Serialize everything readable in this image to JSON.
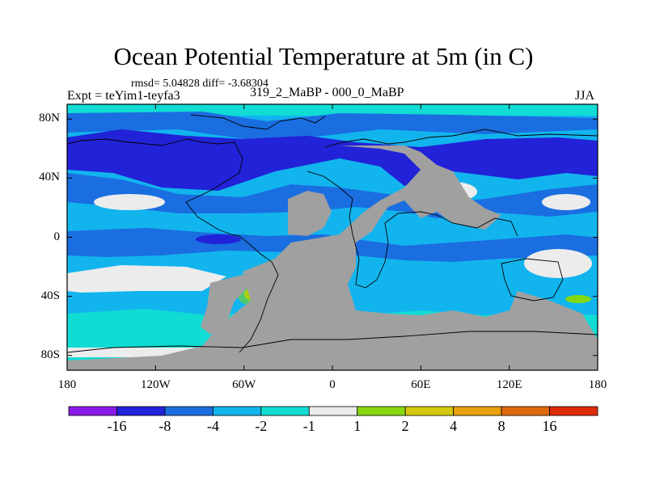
{
  "title": "Ocean Potential Temperature at 5m (in C)",
  "stats": "rmsd= 5.04828 diff= -3.68304",
  "expt": "Expt = teYim1-teyfa3",
  "difference_label": "319_2_MaBP - 000_0_MaBP",
  "season": "JJA",
  "chart_data": {
    "type": "heatmap",
    "variable": "Ocean Potential Temperature at 5m (in C)",
    "projection": "cylindrical equidistant, global",
    "xlim": [
      -180,
      180
    ],
    "ylim": [
      -90,
      90
    ],
    "x_ticks": [
      {
        "value": -180,
        "label": "180"
      },
      {
        "value": -120,
        "label": "120W"
      },
      {
        "value": -60,
        "label": "60W"
      },
      {
        "value": 0,
        "label": "0"
      },
      {
        "value": 60,
        "label": "60E"
      },
      {
        "value": 120,
        "label": "120E"
      },
      {
        "value": 180,
        "label": "180"
      }
    ],
    "y_ticks": [
      {
        "value": 80,
        "label": "80N"
      },
      {
        "value": 40,
        "label": "40N"
      },
      {
        "value": 0,
        "label": "0"
      },
      {
        "value": -40,
        "label": "40S"
      },
      {
        "value": -80,
        "label": "80S"
      }
    ],
    "colorbar": {
      "levels": [
        "-16",
        "-8",
        "-4",
        "-2",
        "-1",
        "1",
        "2",
        "4",
        "8",
        "16"
      ],
      "colors": [
        "#8a1ae6",
        "#2222d8",
        "#1a6ee0",
        "#12b4ee",
        "#10dcd4",
        "#ececec",
        "#86d810",
        "#d4c80c",
        "#e8a00c",
        "#e06a0c",
        "#dc2c0c"
      ]
    },
    "land_color": "#a0a0a0"
  }
}
